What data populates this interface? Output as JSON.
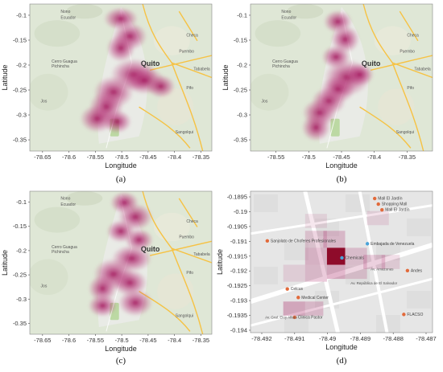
{
  "colors": {
    "heat": "#a2145a",
    "heat_d": "#8e0b2a",
    "terrain": "#dfe7d6",
    "park": "#bcd9a3",
    "road_major": "#f6c243",
    "street_bg": "#e6e6e6"
  },
  "panels": [
    {
      "id": "a",
      "caption": "(a)",
      "xlabel": "Longitude",
      "ylabel": "Latitude",
      "xticks": [
        "-78.65",
        "-78.6",
        "-78.55",
        "-78.5",
        "-78.45",
        "-78.4",
        "-78.35"
      ],
      "yticks": [
        "-0.1",
        "-0.15",
        "-0.2",
        "-0.25",
        "-0.3",
        "-0.35"
      ],
      "places": [
        "Nono",
        "Ecuador",
        "Cerro Guagua Pichincha",
        "Quito",
        "Jos",
        "Checa",
        "Pifo",
        "Puembo",
        "Tababela",
        "Sangolqui"
      ]
    },
    {
      "id": "b",
      "caption": "(b)",
      "xlabel": "Longitude",
      "ylabel": "Latitude",
      "xticks": [
        "-78.55",
        "-78.5",
        "-78.45",
        "-78.4",
        "-78.35"
      ],
      "yticks": [
        "-0.1",
        "-0.15",
        "-0.2",
        "-0.25",
        "-0.3",
        "-0.35"
      ],
      "places": [
        "Nono",
        "Ecuador",
        "Cerro Guagua Pichincha",
        "Quito",
        "Jos",
        "Checa",
        "Pifo",
        "Puembo",
        "Tababela",
        "Sangolqui"
      ]
    },
    {
      "id": "c",
      "caption": "(c)",
      "xlabel": "Longitude",
      "ylabel": "Latitude",
      "xticks": [
        "-78.65",
        "-78.6",
        "-78.55",
        "-78.5",
        "-78.45",
        "-78.4",
        "-78.35"
      ],
      "yticks": [
        "-0.1",
        "-0.15",
        "-0.2",
        "-0.25",
        "-0.3",
        "-0.35"
      ],
      "places": [
        "Nono",
        "Ecuador",
        "Cerro Guagua Pichincha",
        "Quito",
        "Jos",
        "Checa",
        "Pifo",
        "Puembo",
        "Tababela",
        "Sangolqui"
      ]
    },
    {
      "id": "d",
      "caption": "(d)",
      "xlabel": "Longitude",
      "ylabel": "Latitude",
      "xticks": [
        "-78.492",
        "-78.491",
        "-78.49",
        "-78.489",
        "-78.488",
        "-78.487"
      ],
      "yticks": [
        "-0.1895",
        "-0.19",
        "-0.1905",
        "-0.191",
        "-0.1915",
        "-0.192",
        "-0.1925",
        "-0.193",
        "-0.1935",
        "-0.194"
      ],
      "places": [
        "Mall El Jardín",
        "Shopping Mall",
        "Mall El Jardín",
        "Sanjolato de Choferes Profesionales",
        "Chemicals",
        "Embajada de Venezuela",
        "Andes",
        "Celcus",
        "Medical Center",
        "Clinica Pastor",
        "FLACSO",
        "Av. Gral. Eloy Alfaro",
        "Av. Amazonas",
        "Av. República de El Salvador"
      ]
    }
  ]
}
